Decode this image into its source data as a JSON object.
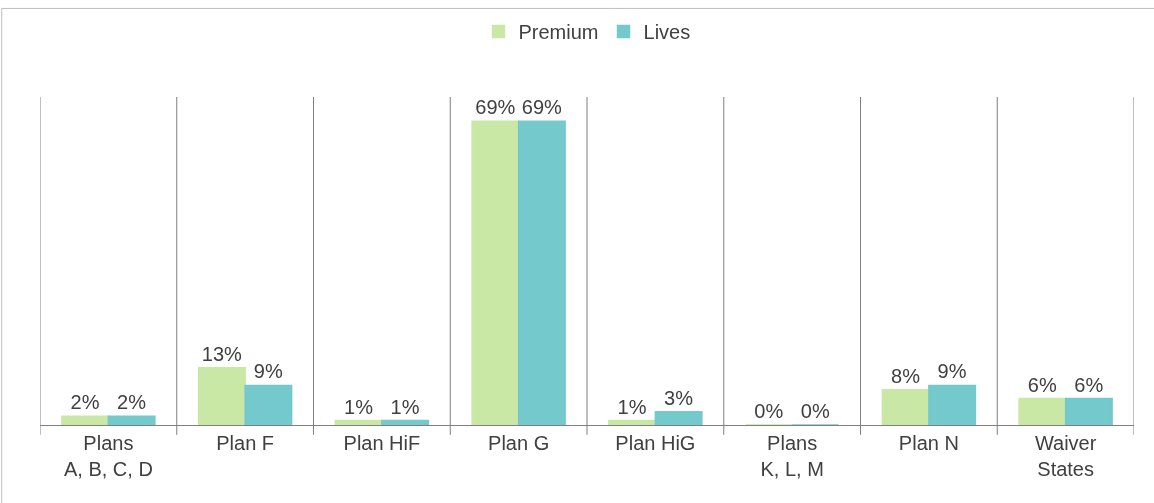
{
  "chart_data": {
    "type": "bar",
    "categories": [
      "Plans\nA, B, C, D",
      "Plan F",
      "Plan HiF",
      "Plan G",
      "Plan HiG",
      "Plans\nK, L, M",
      "Plan N",
      "Waiver\nStates"
    ],
    "series": [
      {
        "name": "Premium",
        "color": "#c9e8a6",
        "values": [
          2,
          13,
          1,
          69,
          1,
          0,
          8,
          6
        ],
        "value_labels": [
          "2%",
          "13%",
          "1%",
          "69%",
          "1%",
          "0%",
          "8%",
          "6%"
        ]
      },
      {
        "name": "Lives",
        "color": "#74c9cc",
        "values": [
          2,
          9,
          1,
          69,
          3,
          0,
          9,
          6
        ],
        "value_labels": [
          "2%",
          "9%",
          "1%",
          "69%",
          "3%",
          "0%",
          "9%",
          "6%"
        ]
      }
    ],
    "grid": "x",
    "legend": "top"
  }
}
